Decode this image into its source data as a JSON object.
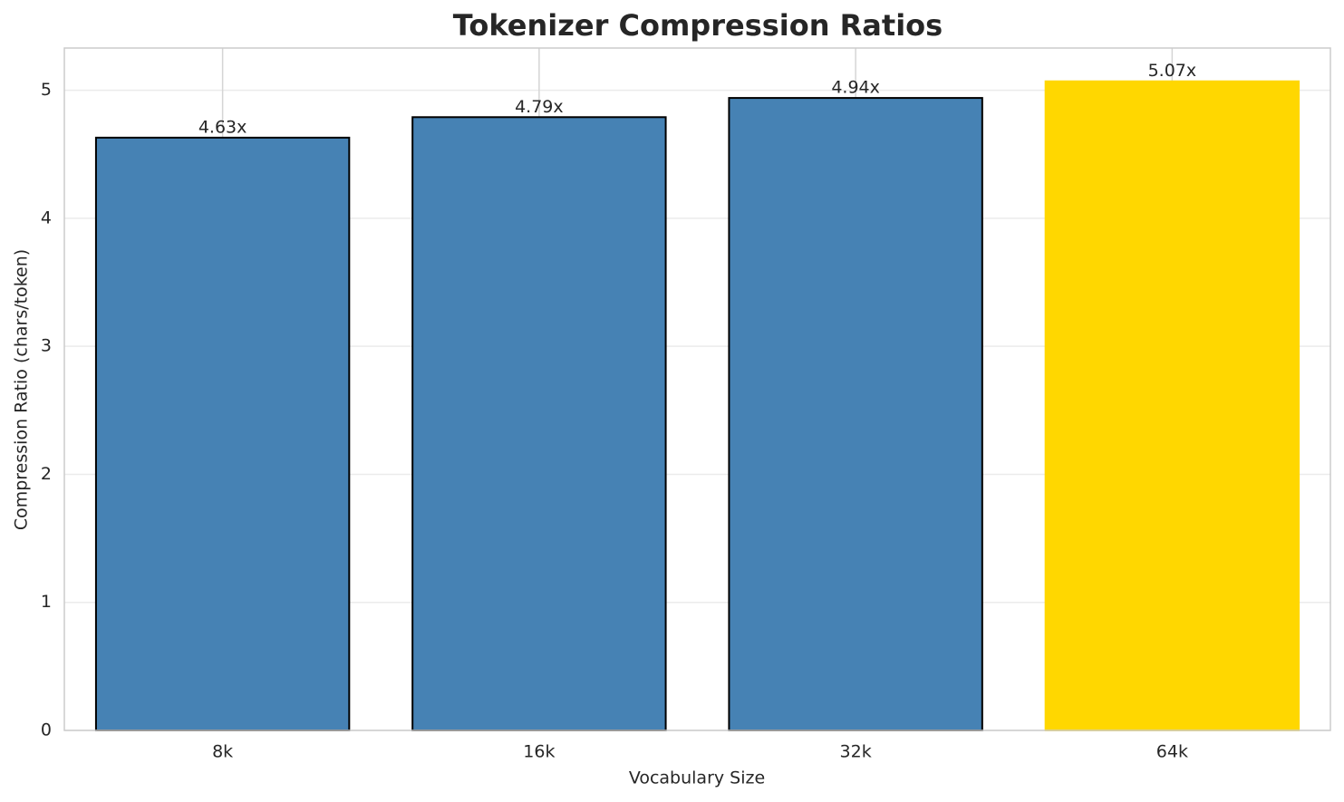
{
  "chart_data": {
    "type": "bar",
    "title": "Tokenizer Compression Ratios",
    "x_label": "Vocabulary Size",
    "y_label": "Compression Ratio (chars/token)",
    "categories": [
      "8k",
      "16k",
      "32k",
      "64k"
    ],
    "values": [
      4.63,
      4.79,
      4.94,
      5.07
    ],
    "value_labels": [
      "4.63x",
      "4.79x",
      "4.94x",
      "5.07x"
    ],
    "colors": [
      "#4682b4",
      "#4682b4",
      "#4682b4",
      "#ffd700"
    ],
    "edge_colors": [
      "#000000",
      "#000000",
      "#000000",
      "#ffd700"
    ],
    "ylim": [
      0,
      5.33
    ],
    "yticks": [
      0,
      1,
      2,
      3,
      4,
      5
    ],
    "grid": true
  }
}
